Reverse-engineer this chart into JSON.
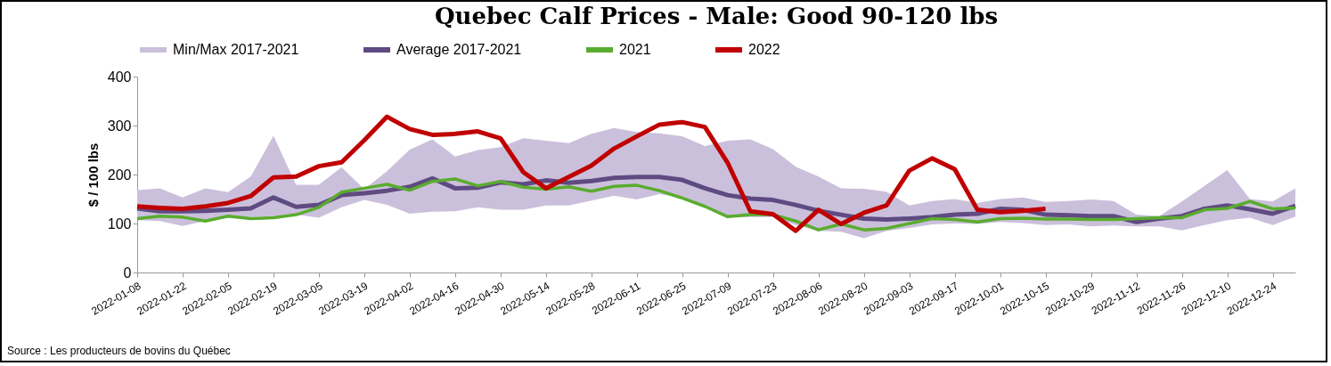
{
  "chart_data": {
    "type": "line",
    "title": "Quebec Calf Prices -  Male: Good 90-120 lbs",
    "ylabel": "$ / 100 lbs",
    "annotations": [
      "Source : Les producteurs de bovins du Québec"
    ],
    "x": [
      "2022-01-08",
      "2022-01-15",
      "2022-01-22",
      "2022-01-29",
      "2022-02-05",
      "2022-02-12",
      "2022-02-19",
      "2022-02-26",
      "2022-03-05",
      "2022-03-12",
      "2022-03-19",
      "2022-03-26",
      "2022-04-02",
      "2022-04-09",
      "2022-04-16",
      "2022-04-23",
      "2022-04-30",
      "2022-05-07",
      "2022-05-14",
      "2022-05-21",
      "2022-05-28",
      "2022-06-04",
      "2022-06-11",
      "2022-06-18",
      "2022-06-25",
      "2022-07-02",
      "2022-07-09",
      "2022-07-16",
      "2022-07-23",
      "2022-07-30",
      "2022-08-06",
      "2022-08-13",
      "2022-08-20",
      "2022-08-27",
      "2022-09-03",
      "2022-09-10",
      "2022-09-17",
      "2022-09-24",
      "2022-10-01",
      "2022-10-08",
      "2022-10-15",
      "2022-10-22",
      "2022-10-29",
      "2022-11-05",
      "2022-11-12",
      "2022-11-19",
      "2022-11-26",
      "2022-12-03",
      "2022-12-10",
      "2022-12-17",
      "2022-12-24",
      "2022-12-31"
    ],
    "series": [
      {
        "name": "Min/Max 2017-2021",
        "type": "area",
        "color": "#cbc0db",
        "values": [
          null,
          null,
          null,
          null,
          null,
          null,
          null,
          null,
          null,
          null,
          null,
          null,
          null,
          null,
          null,
          null,
          null,
          null,
          null,
          null,
          null,
          null,
          null,
          null,
          null,
          null,
          null,
          null,
          null,
          null,
          null,
          null,
          null,
          null,
          null,
          null,
          null,
          null,
          null,
          null,
          null,
          null,
          null,
          null,
          null,
          null,
          null,
          null,
          null,
          null,
          null,
          null
        ],
        "lower": [
          107,
          105,
          95,
          105,
          112,
          113,
          115,
          118,
          112,
          133,
          148,
          138,
          120,
          124,
          125,
          133,
          128,
          128,
          137,
          137,
          147,
          157,
          149,
          160,
          153,
          138,
          112,
          113,
          113,
          97,
          85,
          83,
          70,
          85,
          91,
          98,
          100,
          99,
          103,
          101,
          97,
          98,
          94,
          96,
          94,
          94,
          86,
          97,
          107,
          112,
          97,
          114
        ],
        "upper": [
          168,
          172,
          153,
          172,
          164,
          196,
          279,
          179,
          179,
          215,
          170,
          207,
          251,
          272,
          237,
          250,
          256,
          274,
          269,
          264,
          283,
          295,
          287,
          284,
          278,
          258,
          269,
          272,
          252,
          216,
          196,
          172,
          171,
          165,
          137,
          146,
          150,
          142,
          150,
          153,
          144,
          146,
          149,
          146,
          118,
          115,
          145,
          177,
          209,
          150,
          145,
          172
        ]
      },
      {
        "name": "Average 2017-2021",
        "color": "#5f4b82",
        "values": [
          131,
          125,
          125,
          126,
          128,
          131,
          153,
          134,
          138,
          158,
          162,
          167,
          175,
          192,
          172,
          173,
          184,
          180,
          188,
          183,
          187,
          193,
          195,
          195,
          189,
          172,
          158,
          151,
          148,
          138,
          126,
          118,
          110,
          108,
          110,
          113,
          118,
          120,
          130,
          128,
          118,
          117,
          115,
          115,
          103,
          110,
          115,
          130,
          137,
          129,
          120,
          136
        ]
      },
      {
        "name": "2021",
        "color": "#5aac2e",
        "values": [
          110,
          115,
          113,
          105,
          115,
          110,
          112,
          118,
          133,
          164,
          172,
          180,
          168,
          186,
          191,
          177,
          186,
          174,
          170,
          175,
          166,
          176,
          178,
          167,
          152,
          135,
          114,
          118,
          118,
          105,
          87,
          99,
          87,
          90,
          100,
          110,
          108,
          103,
          110,
          111,
          109,
          109,
          108,
          108,
          110,
          112,
          112,
          128,
          131,
          145,
          130,
          132
        ]
      },
      {
        "name": "2022",
        "color": "#c00000",
        "values": [
          135,
          132,
          130,
          135,
          142,
          156,
          194,
          196,
          217,
          225,
          270,
          318,
          293,
          281,
          283,
          288,
          274,
          205,
          172,
          195,
          218,
          253,
          278,
          302,
          307,
          297,
          224,
          125,
          119,
          85,
          128,
          99,
          122,
          137,
          208,
          233,
          211,
          128,
          123,
          126,
          130,
          null,
          null,
          null,
          null,
          null,
          null,
          null,
          null,
          null,
          null,
          null
        ]
      }
    ],
    "xlim": [
      "2022-01-08",
      "2022-12-31"
    ],
    "xticks": [
      "2022-01-08",
      "2022-01-22",
      "2022-02-05",
      "2022-02-19",
      "2022-03-05",
      "2022-03-19",
      "2022-04-02",
      "2022-04-16",
      "2022-04-30",
      "2022-05-14",
      "2022-05-28",
      "2022-06-11",
      "2022-06-25",
      "2022-07-09",
      "2022-07-23",
      "2022-08-06",
      "2022-08-20",
      "2022-09-03",
      "2022-09-17",
      "2022-10-01",
      "2022-10-15",
      "2022-10-29",
      "2022-11-12",
      "2022-11-26",
      "2022-12-10",
      "2022-12-24"
    ],
    "ylim": [
      0,
      400
    ],
    "yticks": [
      0,
      100,
      200,
      300,
      400
    ],
    "grid": false,
    "legend": "top",
    "line_style": "solid",
    "marker": "none"
  }
}
